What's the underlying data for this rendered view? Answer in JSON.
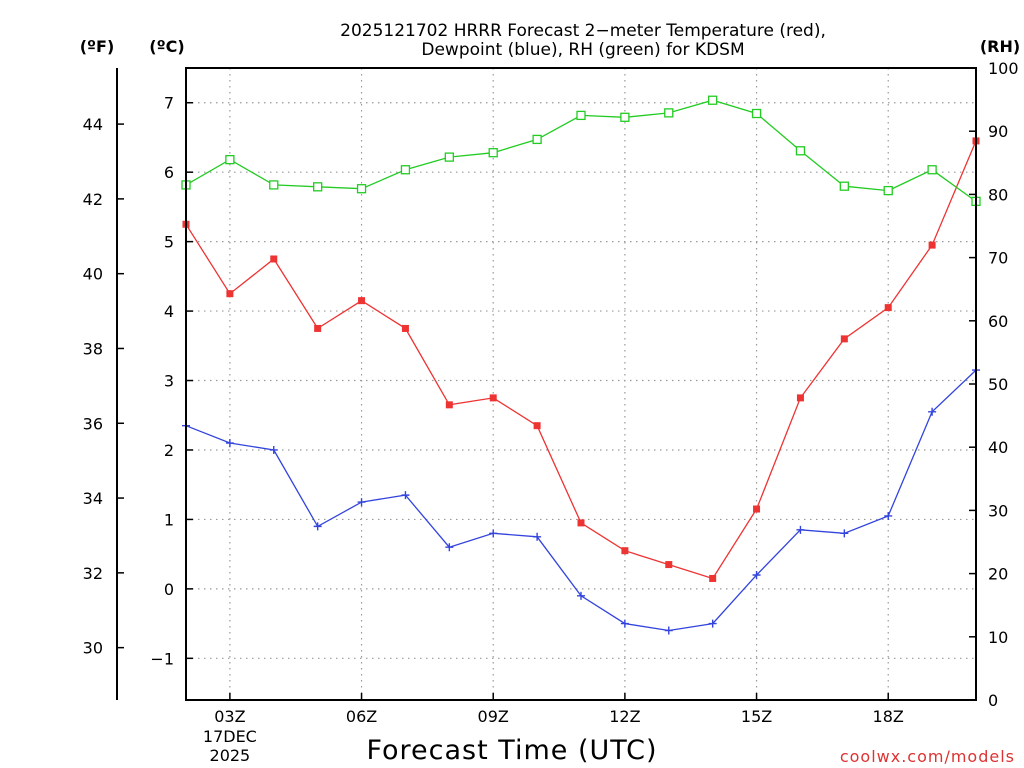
{
  "chart_data": {
    "type": "line",
    "title_line1": "2025121702 HRRR Forecast 2−meter Temperature (red),",
    "title_line2": "Dewpoint (blue), RH (green) for KDSM",
    "xlabel": "Forecast Time (UTC)",
    "x_hours": [
      2,
      3,
      4,
      5,
      6,
      7,
      8,
      9,
      10,
      11,
      12,
      13,
      14,
      15,
      16,
      17,
      18,
      19,
      20
    ],
    "x_ticks": [
      {
        "hour": 3,
        "label": "03Z",
        "sub1": "17DEC",
        "sub2": "2025"
      },
      {
        "hour": 6,
        "label": "06Z"
      },
      {
        "hour": 9,
        "label": "09Z"
      },
      {
        "hour": 12,
        "label": "12Z"
      },
      {
        "hour": 15,
        "label": "15Z"
      },
      {
        "hour": 18,
        "label": "18Z"
      }
    ],
    "xlim": [
      2,
      20
    ],
    "axes": {
      "fahrenheit": {
        "label": "(ºF)",
        "ylim": [
          28.6,
          45.5
        ],
        "ticks": [
          30,
          32,
          34,
          36,
          38,
          40,
          42,
          44
        ]
      },
      "celsius": {
        "label": "(ºC)",
        "ylim": [
          -1.6,
          7.5
        ],
        "ticks": [
          -1,
          0,
          1,
          2,
          3,
          4,
          5,
          6,
          7
        ]
      },
      "rh": {
        "label": "(RH)",
        "ylim": [
          0,
          100
        ],
        "ticks": [
          0,
          10,
          20,
          30,
          40,
          50,
          60,
          70,
          80,
          90,
          100
        ]
      }
    },
    "series": [
      {
        "name": "Temperature",
        "unit": "°C",
        "color": "#ee3333",
        "marker": "filled-square",
        "values": [
          5.25,
          4.25,
          4.75,
          3.75,
          4.15,
          3.75,
          2.65,
          2.75,
          2.35,
          0.95,
          0.55,
          0.35,
          0.15,
          1.15,
          2.75,
          3.6,
          4.05,
          4.95,
          6.45
        ]
      },
      {
        "name": "Dewpoint",
        "unit": "°C",
        "color": "#3344dd",
        "marker": "plus",
        "values": [
          2.35,
          2.1,
          2.0,
          0.9,
          1.25,
          1.35,
          0.6,
          0.8,
          0.75,
          -0.1,
          -0.5,
          -0.6,
          -0.5,
          0.2,
          0.85,
          0.8,
          1.05,
          2.55,
          3.15
        ]
      },
      {
        "name": "RH",
        "unit": "%",
        "color": "#22cc22",
        "marker": "open-square",
        "values": [
          81.5,
          85.5,
          81.5,
          81.2,
          80.9,
          83.9,
          85.9,
          86.6,
          88.7,
          92.5,
          92.2,
          92.9,
          94.9,
          92.8,
          86.9,
          81.3,
          80.6,
          83.9,
          78.9
        ]
      }
    ],
    "footer": "coolwx.com/models"
  }
}
